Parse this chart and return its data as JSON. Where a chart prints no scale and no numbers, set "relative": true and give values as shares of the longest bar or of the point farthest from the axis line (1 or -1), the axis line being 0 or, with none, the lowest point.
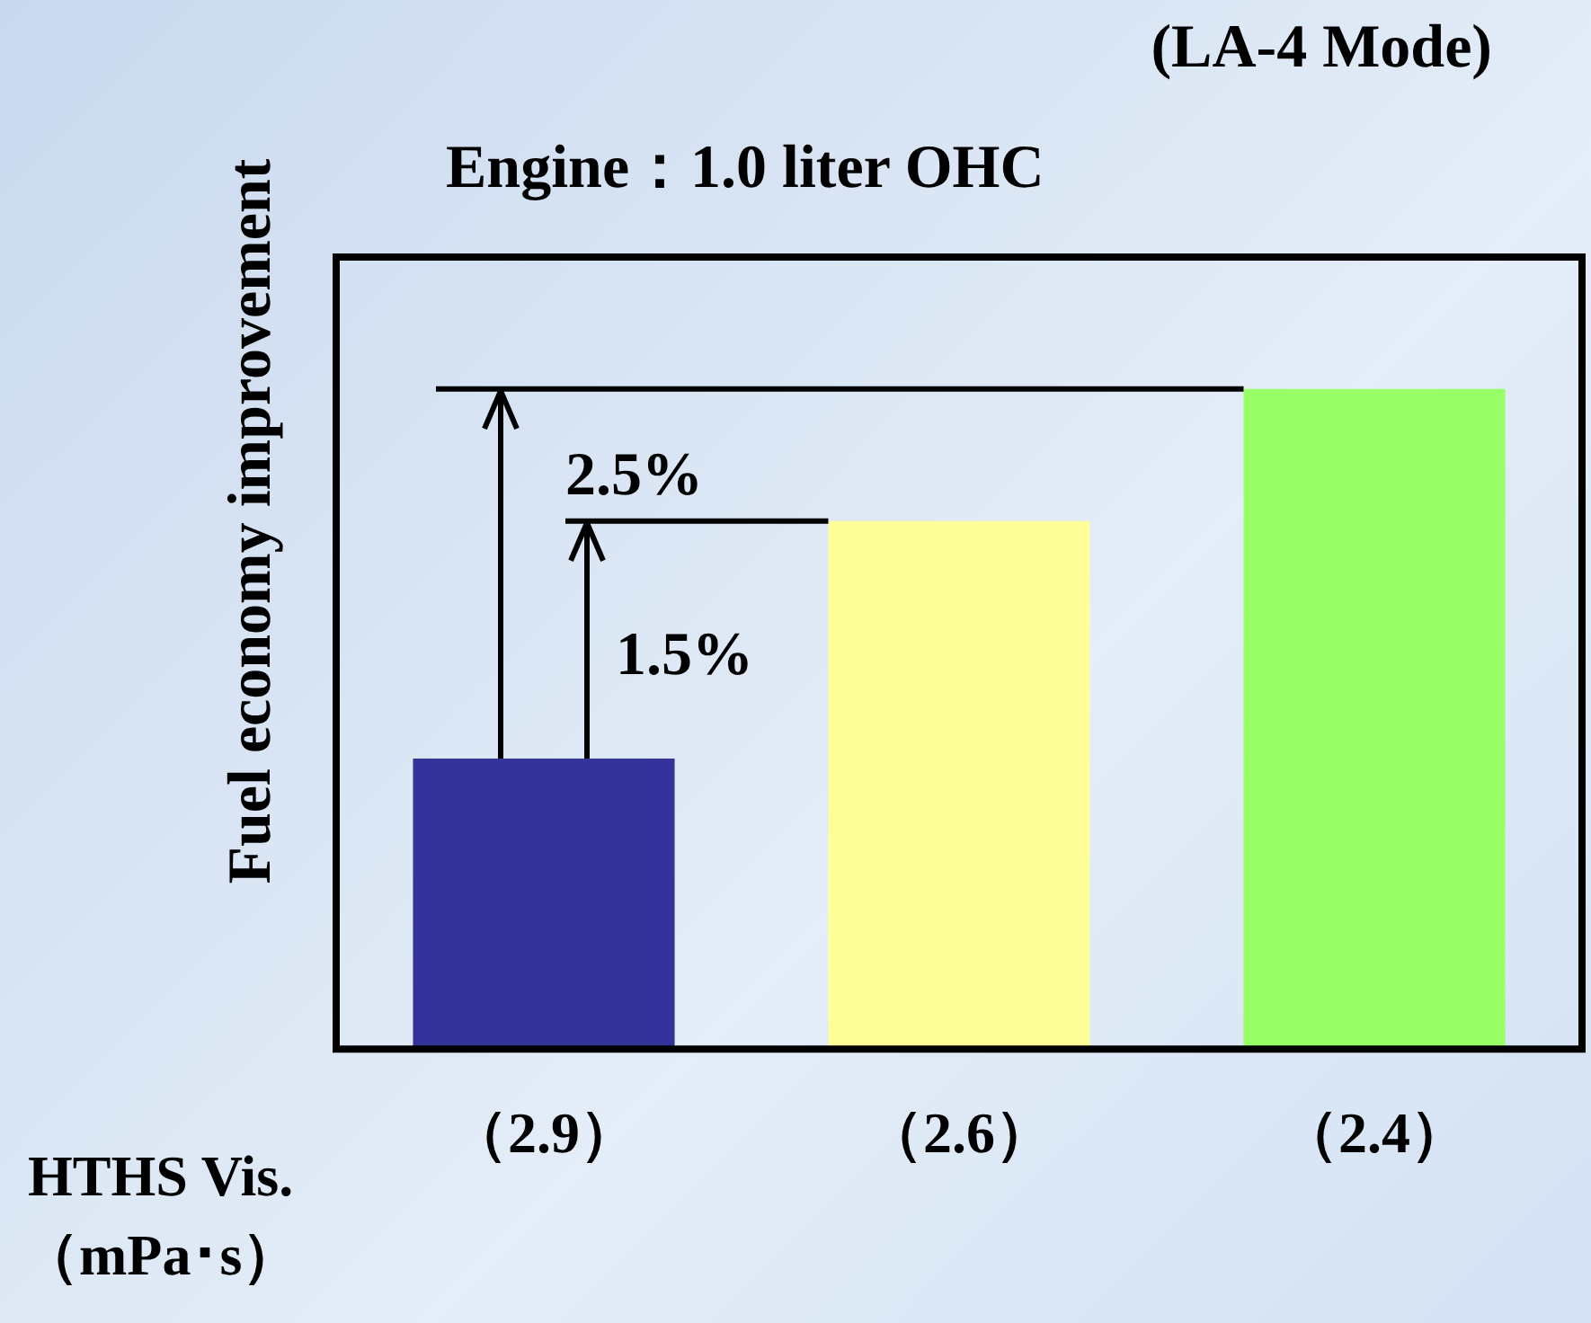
{
  "chart_data": {
    "type": "bar",
    "title": "Engine：1.0 liter OHC",
    "ylabel": "Fuel economy improvement",
    "xlabel": "HTHS Vis.\n（mPa･s）",
    "categories": [
      "（2.9）",
      "（2.6）",
      "（2.4）"
    ],
    "values": [
      0.44,
      0.8,
      1
    ],
    "colors": [
      "#333399",
      "#ffff99",
      "#99ff66"
    ],
    "relative": true,
    "grid": false,
    "legend": false,
    "annotations": [
      "(LA-4 Mode)",
      "1.5%",
      "2.5%"
    ]
  }
}
